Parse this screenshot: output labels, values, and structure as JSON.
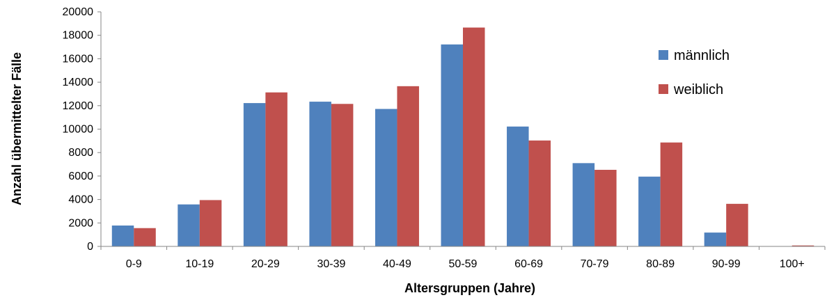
{
  "chart_data": {
    "type": "bar",
    "title": "",
    "xlabel": "Altersgruppen (Jahre)",
    "ylabel": "Anzahl übermittelter Fälle",
    "ylim": [
      0,
      20000
    ],
    "yticks": [
      0,
      2000,
      4000,
      6000,
      8000,
      10000,
      12000,
      14000,
      16000,
      18000,
      20000
    ],
    "grid": false,
    "legend_position": "top-right",
    "categories": [
      "0-9",
      "10-19",
      "20-29",
      "30-39",
      "40-49",
      "50-59",
      "60-69",
      "70-79",
      "80-89",
      "90-99",
      "100+"
    ],
    "series": [
      {
        "name": "männlich",
        "color": "#4f81bd",
        "values": [
          1780,
          3580,
          12220,
          12340,
          11720,
          17220,
          10220,
          7100,
          5950,
          1180,
          0
        ]
      },
      {
        "name": "weiblich",
        "color": "#c0504d",
        "values": [
          1560,
          3950,
          13130,
          12150,
          13660,
          18660,
          9030,
          6530,
          8860,
          3630,
          80
        ]
      }
    ]
  }
}
